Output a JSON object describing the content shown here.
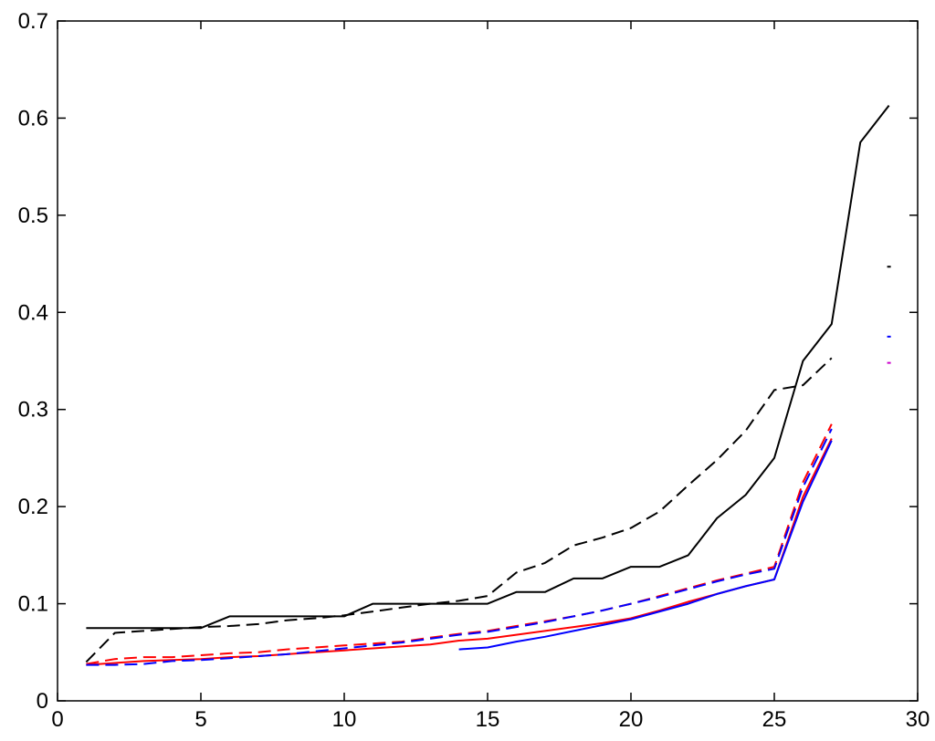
{
  "chart_data": {
    "type": "line",
    "title": "",
    "xlabel": "",
    "ylabel": "",
    "xlim": [
      0,
      30
    ],
    "ylim": [
      0,
      0.7
    ],
    "grid": false,
    "legend": "none",
    "x_ticks": [
      {
        "value": 0,
        "label": "0"
      },
      {
        "value": 5,
        "label": "5"
      },
      {
        "value": 10,
        "label": "10"
      },
      {
        "value": 15,
        "label": "15"
      },
      {
        "value": 20,
        "label": "20"
      },
      {
        "value": 25,
        "label": "25"
      },
      {
        "value": 30,
        "label": "30"
      }
    ],
    "y_ticks": [
      {
        "value": 0,
        "label": "0"
      },
      {
        "value": 0.1,
        "label": "0.1"
      },
      {
        "value": 0.2,
        "label": "0.2"
      },
      {
        "value": 0.3,
        "label": "0.3"
      },
      {
        "value": 0.4,
        "label": "0.4"
      },
      {
        "value": 0.5,
        "label": "0.5"
      },
      {
        "value": 0.6,
        "label": "0.6"
      },
      {
        "value": 0.7,
        "label": "0.7"
      }
    ],
    "series": [
      {
        "color": "#000000",
        "dash": "solid",
        "x": [
          1,
          2,
          3,
          4,
          5,
          6,
          7,
          8,
          9,
          10,
          11,
          12,
          13,
          14,
          15,
          16,
          17,
          18,
          19,
          20,
          21,
          22,
          23,
          24,
          25,
          26,
          27,
          28,
          29
        ],
        "y": [
          0.075,
          0.075,
          0.075,
          0.075,
          0.075,
          0.087,
          0.087,
          0.087,
          0.087,
          0.087,
          0.1,
          0.1,
          0.1,
          0.1,
          0.1,
          0.112,
          0.112,
          0.126,
          0.126,
          0.138,
          0.138,
          0.15,
          0.188,
          0.212,
          0.25,
          0.35,
          0.388,
          0.575,
          0.613
        ]
      },
      {
        "color": "#000000",
        "dash": "dashed",
        "x": [
          1,
          2,
          3,
          4,
          5,
          6,
          7,
          8,
          9,
          10,
          11,
          12,
          13,
          14,
          15,
          16,
          17,
          18,
          19,
          20,
          21,
          22,
          23,
          24,
          25,
          26,
          27
        ],
        "y": [
          0.04,
          0.07,
          0.072,
          0.074,
          0.076,
          0.077,
          0.079,
          0.083,
          0.085,
          0.088,
          0.092,
          0.096,
          0.1,
          0.103,
          0.108,
          0.132,
          0.142,
          0.16,
          0.168,
          0.178,
          0.195,
          0.222,
          0.248,
          0.278,
          0.32,
          0.325,
          0.353
        ]
      },
      {
        "color": "#ff0000",
        "dash": "solid",
        "x": [
          1,
          2,
          3,
          4,
          5,
          6,
          7,
          8,
          9,
          10,
          11,
          12,
          13,
          14,
          15,
          16,
          17,
          18,
          19,
          20,
          21,
          22,
          23,
          24,
          25,
          26,
          27
        ],
        "y": [
          0.037,
          0.039,
          0.041,
          0.042,
          0.043,
          0.045,
          0.046,
          0.048,
          0.05,
          0.052,
          0.054,
          0.056,
          0.058,
          0.062,
          0.064,
          0.068,
          0.072,
          0.076,
          0.08,
          0.085,
          0.093,
          0.102,
          0.11,
          0.118,
          0.125,
          0.21,
          0.27
        ]
      },
      {
        "color": "#ff0000",
        "dash": "dashed",
        "x": [
          1,
          2,
          3,
          4,
          5,
          6,
          7,
          8,
          9,
          10,
          11,
          12,
          13,
          14,
          15,
          16,
          17,
          18,
          19,
          20,
          21,
          22,
          23,
          24,
          25,
          26,
          27
        ],
        "y": [
          0.038,
          0.043,
          0.045,
          0.045,
          0.047,
          0.049,
          0.05,
          0.053,
          0.055,
          0.057,
          0.059,
          0.061,
          0.065,
          0.069,
          0.072,
          0.077,
          0.082,
          0.087,
          0.093,
          0.1,
          0.108,
          0.116,
          0.124,
          0.131,
          0.138,
          0.225,
          0.285
        ]
      },
      {
        "color": "#0000ff",
        "dash": "solid",
        "x": [
          14,
          15,
          16,
          17,
          18,
          19,
          20,
          21,
          22,
          23,
          24,
          25,
          26,
          27
        ],
        "y": [
          0.053,
          0.055,
          0.061,
          0.066,
          0.072,
          0.078,
          0.084,
          0.092,
          0.1,
          0.11,
          0.118,
          0.125,
          0.205,
          0.268
        ]
      },
      {
        "color": "#0000ff",
        "dash": "dashed",
        "x": [
          1,
          2,
          3,
          4,
          5,
          6,
          7,
          8,
          9,
          10,
          11,
          12,
          13,
          14,
          15,
          16,
          17,
          18,
          19,
          20,
          21,
          22,
          23,
          24,
          25,
          26,
          27
        ],
        "y": [
          0.037,
          0.037,
          0.038,
          0.041,
          0.042,
          0.044,
          0.046,
          0.048,
          0.051,
          0.054,
          0.057,
          0.06,
          0.064,
          0.068,
          0.071,
          0.076,
          0.081,
          0.087,
          0.093,
          0.1,
          0.107,
          0.115,
          0.123,
          0.13,
          0.136,
          0.22,
          0.28
        ]
      }
    ],
    "markers": [
      {
        "x": 29,
        "y": 0.447,
        "color": "#000000"
      },
      {
        "x": 29,
        "y": 0.375,
        "color": "#0000ff"
      },
      {
        "x": 29,
        "y": 0.348,
        "color": "#cc00cc"
      }
    ]
  }
}
